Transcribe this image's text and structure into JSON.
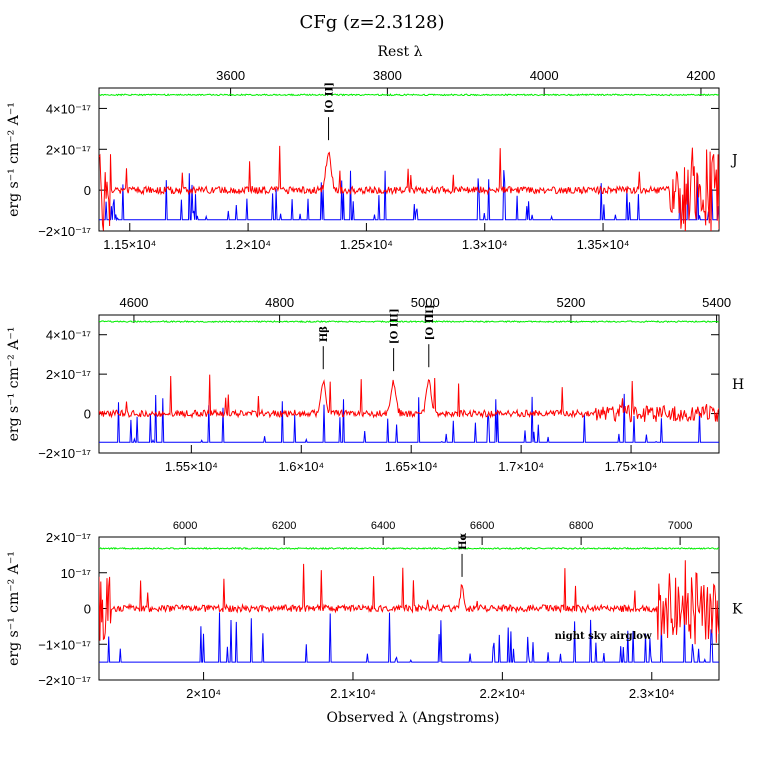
{
  "title": "CFg (z=2.3128)",
  "top_axis_label": "Rest λ",
  "bottom_axis_label": "Observed λ (Angstroms)",
  "ylabel": "erg s⁻¹ cm⁻² A⁻¹",
  "colors": {
    "spectrum": "#ff0000",
    "sky": "#0000ff",
    "transmission": "#00ee00",
    "axes": "#000000"
  },
  "chart_data": [
    {
      "type": "line",
      "band": "J",
      "xlim": [
        11370,
        13990
      ],
      "ylim": [
        -2e-17,
        5e-17
      ],
      "x_ticks": [
        {
          "value": 11500,
          "label": "1.15×10⁴"
        },
        {
          "value": 12000,
          "label": "1.2×10⁴"
        },
        {
          "value": 12500,
          "label": "1.25×10⁴"
        },
        {
          "value": 13000,
          "label": "1.3×10⁴"
        },
        {
          "value": 13500,
          "label": "1.35×10⁴"
        }
      ],
      "rest_ticks": [
        {
          "value": 3600,
          "label": "3600"
        },
        {
          "value": 3800,
          "label": "3800"
        },
        {
          "value": 4000,
          "label": "4000"
        },
        {
          "value": 4200,
          "label": "4200"
        }
      ],
      "y_ticks": [
        {
          "value": 4e-17,
          "label": "4×10⁻¹⁷"
        },
        {
          "value": 2e-17,
          "label": "2×10⁻¹⁷"
        },
        {
          "value": 0,
          "label": "0"
        },
        {
          "value": -2e-17,
          "label": "−2×10⁻¹⁷"
        }
      ],
      "lines": [
        {
          "label": "[O II]",
          "x": 12340,
          "y": 2.3e-17
        }
      ],
      "annotation": ""
    },
    {
      "type": "line",
      "band": "H",
      "xlim": [
        15080,
        17900
      ],
      "ylim": [
        -2e-17,
        5e-17
      ],
      "x_ticks": [
        {
          "value": 15500,
          "label": "1.55×10⁴"
        },
        {
          "value": 16000,
          "label": "1.6×10⁴"
        },
        {
          "value": 16500,
          "label": "1.65×10⁴"
        },
        {
          "value": 17000,
          "label": "1.7×10⁴"
        },
        {
          "value": 17500,
          "label": "1.75×10⁴"
        }
      ],
      "rest_ticks": [
        {
          "value": 4600,
          "label": "4600"
        },
        {
          "value": 4800,
          "label": "4800"
        },
        {
          "value": 5000,
          "label": "5000"
        },
        {
          "value": 5200,
          "label": "5200"
        },
        {
          "value": 5400,
          "label": "5400"
        }
      ],
      "y_ticks": [
        {
          "value": 4e-17,
          "label": "4×10⁻¹⁷"
        },
        {
          "value": 2e-17,
          "label": "2×10⁻¹⁷"
        },
        {
          "value": 0,
          "label": "0"
        },
        {
          "value": -2e-17,
          "label": "−2×10⁻¹⁷"
        }
      ],
      "lines": [
        {
          "label": "Hβ",
          "x": 16100,
          "y": 2.1e-17
        },
        {
          "label": "[O III]",
          "x": 16420,
          "y": 2e-17
        },
        {
          "label": "[O III]",
          "x": 16580,
          "y": 2.2e-17
        }
      ],
      "annotation": ""
    },
    {
      "type": "line",
      "band": "K",
      "xlim": [
        19300,
        23450
      ],
      "ylim": [
        -2e-17,
        2e-17
      ],
      "x_ticks": [
        {
          "value": 20000,
          "label": "2×10⁴"
        },
        {
          "value": 21000,
          "label": "2.1×10⁴"
        },
        {
          "value": 22000,
          "label": "2.2×10⁴"
        },
        {
          "value": 23000,
          "label": "2.3×10⁴"
        }
      ],
      "rest_ticks": [
        {
          "value": 6000,
          "label": "6000"
        },
        {
          "value": 6200,
          "label": "6200"
        },
        {
          "value": 6400,
          "label": "6400"
        },
        {
          "value": 6600,
          "label": "6600"
        },
        {
          "value": 6800,
          "label": "6800"
        },
        {
          "value": 7000,
          "label": "7000"
        }
      ],
      "y_ticks": [
        {
          "value": 2e-17,
          "label": "2×10⁻¹⁷"
        },
        {
          "value": 1e-17,
          "label": "10⁻¹⁷"
        },
        {
          "value": 0,
          "label": "0"
        },
        {
          "value": -1e-17,
          "label": "−1×10⁻¹⁷"
        },
        {
          "value": -2e-17,
          "label": "−2×10⁻¹⁷"
        }
      ],
      "lines": [
        {
          "label": "Hα",
          "x": 21730,
          "y": 8e-18
        }
      ],
      "annotation": "night sky airglow"
    }
  ]
}
